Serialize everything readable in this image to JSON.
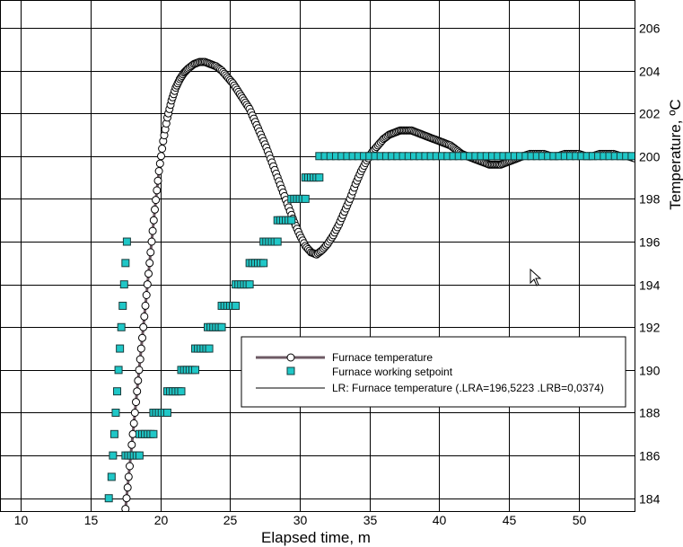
{
  "chart_data": {
    "type": "scatter",
    "xlabel": "Elapsed time, m",
    "ylabel": "Temperature, ºC",
    "xlim": [
      8.5,
      54
    ],
    "ylim": [
      183.4,
      207.3
    ],
    "x_ticks": [
      10,
      15,
      20,
      25,
      30,
      35,
      40,
      45,
      50
    ],
    "y_ticks": [
      184,
      186,
      188,
      190,
      192,
      194,
      196,
      198,
      200,
      202,
      204,
      206
    ],
    "grid": true,
    "legend_position": "lower-right",
    "series": [
      {
        "name": "Furnace temperature",
        "style": "line-with-circle-markers",
        "color": "#6e5a64",
        "marker_fill": "#ffffff",
        "points": [
          [
            17.5,
            183.5
          ],
          [
            17.8,
            185.5
          ],
          [
            18.1,
            187.5
          ],
          [
            18.4,
            189.5
          ],
          [
            18.7,
            191.5
          ],
          [
            19.0,
            193.5
          ],
          [
            19.3,
            195.5
          ],
          [
            19.6,
            197.5
          ],
          [
            19.9,
            199.3
          ],
          [
            20.2,
            200.7
          ],
          [
            20.5,
            201.8
          ],
          [
            20.8,
            202.6
          ],
          [
            21.1,
            203.2
          ],
          [
            21.4,
            203.6
          ],
          [
            21.7,
            203.9
          ],
          [
            22.0,
            204.1
          ],
          [
            22.4,
            204.3
          ],
          [
            22.8,
            204.4
          ],
          [
            23.2,
            204.4
          ],
          [
            23.6,
            204.3
          ],
          [
            24.0,
            204.2
          ],
          [
            24.4,
            204.0
          ],
          [
            24.8,
            203.7
          ],
          [
            25.2,
            203.4
          ],
          [
            25.6,
            203.0
          ],
          [
            26.0,
            202.6
          ],
          [
            26.4,
            202.2
          ],
          [
            26.8,
            201.6
          ],
          [
            27.2,
            201.0
          ],
          [
            27.6,
            200.4
          ],
          [
            28.0,
            199.7
          ],
          [
            28.4,
            199.0
          ],
          [
            28.8,
            198.3
          ],
          [
            29.2,
            197.6
          ],
          [
            29.6,
            196.9
          ],
          [
            30.0,
            196.3
          ],
          [
            30.4,
            195.8
          ],
          [
            30.8,
            195.5
          ],
          [
            31.2,
            195.4
          ],
          [
            31.6,
            195.6
          ],
          [
            32.0,
            195.9
          ],
          [
            32.4,
            196.3
          ],
          [
            32.8,
            196.8
          ],
          [
            33.2,
            197.4
          ],
          [
            33.6,
            198.0
          ],
          [
            34.0,
            198.7
          ],
          [
            34.4,
            199.3
          ],
          [
            34.8,
            199.8
          ],
          [
            35.2,
            200.2
          ],
          [
            35.6,
            200.5
          ],
          [
            36.0,
            200.8
          ],
          [
            36.4,
            201.0
          ],
          [
            36.8,
            201.1
          ],
          [
            37.2,
            201.2
          ],
          [
            37.6,
            201.2
          ],
          [
            38.0,
            201.2
          ],
          [
            38.4,
            201.1
          ],
          [
            38.8,
            201.0
          ],
          [
            39.2,
            200.9
          ],
          [
            39.6,
            200.8
          ],
          [
            40.0,
            200.7
          ],
          [
            40.4,
            200.6
          ],
          [
            40.8,
            200.5
          ],
          [
            41.2,
            200.3
          ],
          [
            41.6,
            200.1
          ],
          [
            42.0,
            200.0
          ],
          [
            42.4,
            199.9
          ],
          [
            42.8,
            199.8
          ],
          [
            43.2,
            199.7
          ],
          [
            43.6,
            199.6
          ],
          [
            44.0,
            199.6
          ],
          [
            44.4,
            199.6
          ],
          [
            44.8,
            199.7
          ],
          [
            45.2,
            199.8
          ],
          [
            45.6,
            199.9
          ],
          [
            46.0,
            200.0
          ],
          [
            46.5,
            200.1
          ],
          [
            47.0,
            200.1
          ],
          [
            47.5,
            200.1
          ],
          [
            48.0,
            200.0
          ],
          [
            48.5,
            200.0
          ],
          [
            49.0,
            200.1
          ],
          [
            49.5,
            200.1
          ],
          [
            50.0,
            200.1
          ],
          [
            50.5,
            200.0
          ],
          [
            51.0,
            200.0
          ],
          [
            51.5,
            200.1
          ],
          [
            52.0,
            200.1
          ],
          [
            52.5,
            200.1
          ],
          [
            53.0,
            200.0
          ],
          [
            53.5,
            200.0
          ],
          [
            54.0,
            199.9
          ]
        ]
      },
      {
        "name": "Furnace working setpoint",
        "style": "square-markers",
        "color": "#1fc7c7",
        "marker_stroke": "#1a3d3d",
        "points": [
          [
            16.3,
            184
          ],
          [
            16.5,
            185
          ],
          [
            16.6,
            186
          ],
          [
            16.7,
            187
          ],
          [
            16.8,
            188
          ],
          [
            16.9,
            189
          ],
          [
            17.0,
            190
          ],
          [
            17.1,
            191
          ],
          [
            17.2,
            192
          ],
          [
            17.3,
            193
          ],
          [
            17.4,
            194
          ],
          [
            17.5,
            195
          ],
          [
            17.6,
            196
          ],
          [
            17.5,
            186
          ],
          [
            17.7,
            186
          ],
          [
            17.9,
            186
          ],
          [
            18.1,
            186
          ],
          [
            18.3,
            186
          ],
          [
            18.5,
            186
          ],
          [
            18.5,
            187
          ],
          [
            18.7,
            187
          ],
          [
            18.9,
            187
          ],
          [
            19.1,
            187
          ],
          [
            19.3,
            187
          ],
          [
            19.5,
            187
          ],
          [
            19.5,
            188
          ],
          [
            19.7,
            188
          ],
          [
            19.9,
            188
          ],
          [
            20.1,
            188
          ],
          [
            20.3,
            188
          ],
          [
            20.5,
            188
          ],
          [
            20.5,
            189
          ],
          [
            20.7,
            189
          ],
          [
            20.9,
            189
          ],
          [
            21.1,
            189
          ],
          [
            21.3,
            189
          ],
          [
            21.5,
            189
          ],
          [
            21.5,
            190
          ],
          [
            21.7,
            190
          ],
          [
            21.9,
            190
          ],
          [
            22.1,
            190
          ],
          [
            22.3,
            190
          ],
          [
            22.5,
            190
          ],
          [
            22.5,
            191
          ],
          [
            22.7,
            191
          ],
          [
            22.9,
            191
          ],
          [
            23.1,
            191
          ],
          [
            23.3,
            191
          ],
          [
            23.5,
            191
          ],
          [
            23.4,
            192
          ],
          [
            23.6,
            192
          ],
          [
            23.8,
            192
          ],
          [
            24.0,
            192
          ],
          [
            24.2,
            192
          ],
          [
            24.4,
            192
          ],
          [
            24.4,
            193
          ],
          [
            24.6,
            193
          ],
          [
            24.8,
            193
          ],
          [
            25.0,
            193
          ],
          [
            25.2,
            193
          ],
          [
            25.4,
            193
          ],
          [
            25.4,
            194
          ],
          [
            25.6,
            194
          ],
          [
            25.8,
            194
          ],
          [
            26.0,
            194
          ],
          [
            26.2,
            194
          ],
          [
            26.4,
            194
          ],
          [
            26.4,
            195
          ],
          [
            26.6,
            195
          ],
          [
            26.8,
            195
          ],
          [
            27.0,
            195
          ],
          [
            27.2,
            195
          ],
          [
            27.4,
            195
          ],
          [
            27.4,
            196
          ],
          [
            27.6,
            196
          ],
          [
            27.8,
            196
          ],
          [
            28.0,
            196
          ],
          [
            28.2,
            196
          ],
          [
            28.4,
            196
          ],
          [
            28.4,
            197
          ],
          [
            28.6,
            197
          ],
          [
            28.8,
            197
          ],
          [
            29.0,
            197
          ],
          [
            29.2,
            197
          ],
          [
            29.4,
            197
          ],
          [
            29.4,
            198
          ],
          [
            29.6,
            198
          ],
          [
            29.8,
            198
          ],
          [
            30.0,
            198
          ],
          [
            30.2,
            198
          ],
          [
            30.4,
            198
          ],
          [
            30.4,
            199
          ],
          [
            30.6,
            199
          ],
          [
            30.8,
            199
          ],
          [
            31.0,
            199
          ],
          [
            31.2,
            199
          ],
          [
            31.4,
            199
          ]
        ],
        "plateau": {
          "y": 200,
          "x_start": 31.4,
          "x_end": 54.0,
          "step": 0.4
        }
      },
      {
        "name": "LR: Furnace temperature (.LRA=196,5223 .LRB=0,0374)",
        "style": "line",
        "color": "#000000",
        "points": []
      }
    ],
    "cursor": {
      "x": 591,
      "y": 300
    }
  }
}
